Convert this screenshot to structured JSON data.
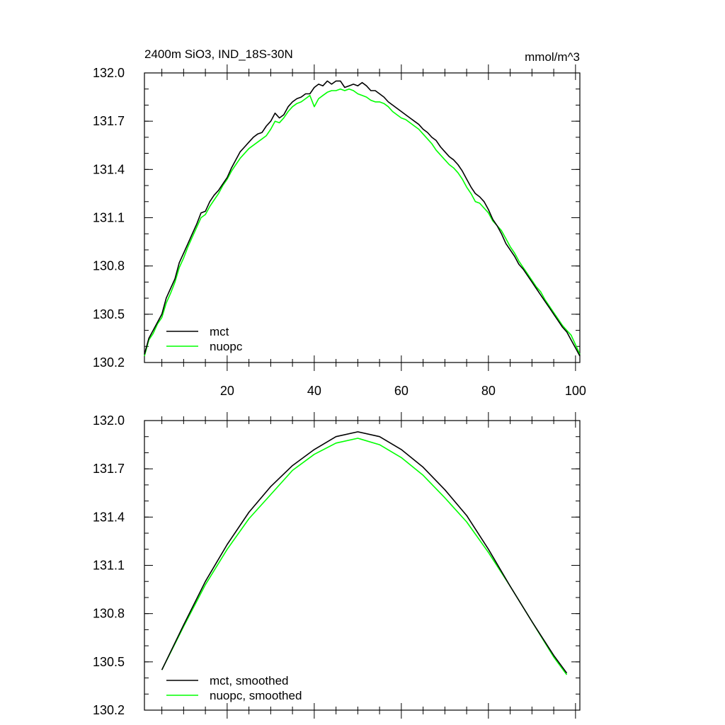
{
  "chart_data": [
    {
      "type": "line",
      "title": "2400m SiO3, IND_18S-30N",
      "units": "mmol/m^3",
      "xlim": [
        1,
        101
      ],
      "ylim": [
        130.2,
        132.0
      ],
      "x_ticks": [
        20,
        40,
        60,
        80,
        100
      ],
      "y_ticks": [
        130.2,
        130.5,
        130.8,
        131.1,
        131.4,
        131.7,
        132.0
      ],
      "y_tick_labels": [
        "130.2",
        "130.5",
        "130.8",
        "131.1",
        "131.4",
        "131.7",
        "132.0"
      ],
      "x_tick_labels": [
        "20",
        "40",
        "60",
        "80",
        "100"
      ],
      "legend_position": "bottom-left",
      "series": [
        {
          "name": "mct",
          "color": "#000000",
          "points": [
            [
              1,
              130.25
            ],
            [
              2,
              130.35
            ],
            [
              3,
              130.4
            ],
            [
              4,
              130.45
            ],
            [
              5,
              130.5
            ],
            [
              6,
              130.6
            ],
            [
              7,
              130.66
            ],
            [
              8,
              130.72
            ],
            [
              9,
              130.82
            ],
            [
              10,
              130.88
            ],
            [
              11,
              130.94
            ],
            [
              12,
              131.0
            ],
            [
              13,
              131.06
            ],
            [
              14,
              131.13
            ],
            [
              15,
              131.14
            ],
            [
              16,
              131.2
            ],
            [
              17,
              131.24
            ],
            [
              18,
              131.27
            ],
            [
              19,
              131.31
            ],
            [
              20,
              131.35
            ],
            [
              21,
              131.41
            ],
            [
              22,
              131.46
            ],
            [
              23,
              131.51
            ],
            [
              24,
              131.54
            ],
            [
              25,
              131.57
            ],
            [
              26,
              131.6
            ],
            [
              27,
              131.62
            ],
            [
              28,
              131.63
            ],
            [
              29,
              131.67
            ],
            [
              30,
              131.7
            ],
            [
              31,
              131.75
            ],
            [
              32,
              131.72
            ],
            [
              33,
              131.74
            ],
            [
              34,
              131.79
            ],
            [
              35,
              131.82
            ],
            [
              36,
              131.84
            ],
            [
              37,
              131.85
            ],
            [
              38,
              131.87
            ],
            [
              39,
              131.87
            ],
            [
              40,
              131.91
            ],
            [
              41,
              131.93
            ],
            [
              42,
              131.92
            ],
            [
              43,
              131.95
            ],
            [
              44,
              131.93
            ],
            [
              45,
              131.95
            ],
            [
              46,
              131.95
            ],
            [
              47,
              131.91
            ],
            [
              48,
              131.92
            ],
            [
              49,
              131.93
            ],
            [
              50,
              131.92
            ],
            [
              51,
              131.94
            ],
            [
              52,
              131.92
            ],
            [
              53,
              131.89
            ],
            [
              54,
              131.89
            ],
            [
              55,
              131.87
            ],
            [
              56,
              131.85
            ],
            [
              57,
              131.82
            ],
            [
              58,
              131.8
            ],
            [
              59,
              131.78
            ],
            [
              60,
              131.76
            ],
            [
              61,
              131.74
            ],
            [
              62,
              131.72
            ],
            [
              63,
              131.7
            ],
            [
              64,
              131.68
            ],
            [
              65,
              131.65
            ],
            [
              66,
              131.63
            ],
            [
              67,
              131.6
            ],
            [
              68,
              131.58
            ],
            [
              69,
              131.54
            ],
            [
              70,
              131.51
            ],
            [
              71,
              131.48
            ],
            [
              72,
              131.46
            ],
            [
              73,
              131.43
            ],
            [
              74,
              131.39
            ],
            [
              75,
              131.34
            ],
            [
              76,
              131.29
            ],
            [
              77,
              131.25
            ],
            [
              78,
              131.23
            ],
            [
              79,
              131.2
            ],
            [
              80,
              131.15
            ],
            [
              81,
              131.09
            ],
            [
              82,
              131.05
            ],
            [
              83,
              131.0
            ],
            [
              84,
              130.94
            ],
            [
              85,
              130.9
            ],
            [
              86,
              130.86
            ],
            [
              87,
              130.81
            ],
            [
              88,
              130.78
            ],
            [
              89,
              130.74
            ],
            [
              90,
              130.7
            ],
            [
              91,
              130.66
            ],
            [
              92,
              130.62
            ],
            [
              93,
              130.58
            ],
            [
              94,
              130.54
            ],
            [
              95,
              130.5
            ],
            [
              96,
              130.46
            ],
            [
              97,
              130.42
            ],
            [
              98,
              130.39
            ],
            [
              99,
              130.34
            ],
            [
              100,
              130.29
            ],
            [
              101,
              130.24
            ]
          ]
        },
        {
          "name": "nuopc",
          "color": "#00ff00",
          "points": [
            [
              1,
              130.24
            ],
            [
              2,
              130.34
            ],
            [
              3,
              130.38
            ],
            [
              4,
              130.44
            ],
            [
              5,
              130.48
            ],
            [
              6,
              130.57
            ],
            [
              7,
              130.63
            ],
            [
              8,
              130.7
            ],
            [
              9,
              130.79
            ],
            [
              10,
              130.85
            ],
            [
              11,
              130.92
            ],
            [
              12,
              130.98
            ],
            [
              13,
              131.04
            ],
            [
              14,
              131.1
            ],
            [
              15,
              131.12
            ],
            [
              16,
              131.17
            ],
            [
              17,
              131.21
            ],
            [
              18,
              131.25
            ],
            [
              19,
              131.3
            ],
            [
              20,
              131.34
            ],
            [
              21,
              131.39
            ],
            [
              22,
              131.43
            ],
            [
              23,
              131.47
            ],
            [
              24,
              131.5
            ],
            [
              25,
              131.53
            ],
            [
              26,
              131.55
            ],
            [
              27,
              131.57
            ],
            [
              28,
              131.59
            ],
            [
              29,
              131.61
            ],
            [
              30,
              131.65
            ],
            [
              31,
              131.7
            ],
            [
              32,
              131.69
            ],
            [
              33,
              131.72
            ],
            [
              34,
              131.76
            ],
            [
              35,
              131.79
            ],
            [
              36,
              131.81
            ],
            [
              37,
              131.82
            ],
            [
              38,
              131.84
            ],
            [
              39,
              131.86
            ],
            [
              40,
              131.79
            ],
            [
              41,
              131.84
            ],
            [
              42,
              131.86
            ],
            [
              43,
              131.88
            ],
            [
              44,
              131.89
            ],
            [
              45,
              131.89
            ],
            [
              46,
              131.9
            ],
            [
              47,
              131.89
            ],
            [
              48,
              131.9
            ],
            [
              49,
              131.89
            ],
            [
              50,
              131.87
            ],
            [
              51,
              131.86
            ],
            [
              52,
              131.85
            ],
            [
              53,
              131.83
            ],
            [
              54,
              131.82
            ],
            [
              55,
              131.82
            ],
            [
              56,
              131.81
            ],
            [
              57,
              131.79
            ],
            [
              58,
              131.76
            ],
            [
              59,
              131.74
            ],
            [
              60,
              131.72
            ],
            [
              61,
              131.71
            ],
            [
              62,
              131.69
            ],
            [
              63,
              131.67
            ],
            [
              64,
              131.65
            ],
            [
              65,
              131.62
            ],
            [
              66,
              131.59
            ],
            [
              67,
              131.56
            ],
            [
              68,
              131.52
            ],
            [
              69,
              131.49
            ],
            [
              70,
              131.46
            ],
            [
              71,
              131.43
            ],
            [
              72,
              131.41
            ],
            [
              73,
              131.38
            ],
            [
              74,
              131.34
            ],
            [
              75,
              131.29
            ],
            [
              76,
              131.25
            ],
            [
              77,
              131.2
            ],
            [
              78,
              131.19
            ],
            [
              79,
              131.16
            ],
            [
              80,
              131.13
            ],
            [
              81,
              131.08
            ],
            [
              82,
              131.05
            ],
            [
              83,
              131.02
            ],
            [
              84,
              130.97
            ],
            [
              85,
              130.92
            ],
            [
              86,
              130.88
            ],
            [
              87,
              130.83
            ],
            [
              88,
              130.79
            ],
            [
              89,
              130.75
            ],
            [
              90,
              130.71
            ],
            [
              91,
              130.67
            ],
            [
              92,
              130.64
            ],
            [
              93,
              130.59
            ],
            [
              94,
              130.55
            ],
            [
              95,
              130.51
            ],
            [
              96,
              130.47
            ],
            [
              97,
              130.43
            ],
            [
              98,
              130.4
            ],
            [
              99,
              130.37
            ],
            [
              100,
              130.31
            ],
            [
              101,
              130.25
            ]
          ]
        }
      ]
    },
    {
      "type": "line",
      "xlim": [
        1,
        101
      ],
      "ylim": [
        130.2,
        132.0
      ],
      "x_ticks": [
        20,
        40,
        60,
        80,
        100
      ],
      "y_ticks": [
        130.2,
        130.5,
        130.8,
        131.1,
        131.4,
        131.7,
        132.0
      ],
      "y_tick_labels": [
        "130.2",
        "130.5",
        "130.8",
        "131.1",
        "131.4",
        "131.7",
        "132.0"
      ],
      "legend_position": "bottom-left",
      "series": [
        {
          "name": "mct, smoothed",
          "color": "#000000",
          "points": [
            [
              5,
              130.45
            ],
            [
              10,
              130.73
            ],
            [
              15,
              131.0
            ],
            [
              20,
              131.23
            ],
            [
              25,
              131.43
            ],
            [
              30,
              131.59
            ],
            [
              35,
              131.72
            ],
            [
              40,
              131.82
            ],
            [
              45,
              131.9
            ],
            [
              50,
              131.93
            ],
            [
              55,
              131.9
            ],
            [
              60,
              131.82
            ],
            [
              65,
              131.71
            ],
            [
              70,
              131.57
            ],
            [
              75,
              131.41
            ],
            [
              80,
              131.2
            ],
            [
              85,
              130.97
            ],
            [
              90,
              130.75
            ],
            [
              95,
              130.54
            ],
            [
              98,
              130.43
            ]
          ]
        },
        {
          "name": "nuopc, smoothed",
          "color": "#00ff00",
          "points": [
            [
              5,
              130.45
            ],
            [
              10,
              130.72
            ],
            [
              15,
              130.98
            ],
            [
              20,
              131.2
            ],
            [
              25,
              131.39
            ],
            [
              30,
              131.54
            ],
            [
              35,
              131.69
            ],
            [
              40,
              131.79
            ],
            [
              45,
              131.86
            ],
            [
              50,
              131.89
            ],
            [
              55,
              131.85
            ],
            [
              60,
              131.77
            ],
            [
              65,
              131.66
            ],
            [
              70,
              131.52
            ],
            [
              75,
              131.37
            ],
            [
              80,
              131.18
            ],
            [
              85,
              130.97
            ],
            [
              90,
              130.75
            ],
            [
              95,
              130.53
            ],
            [
              98,
              130.42
            ]
          ]
        }
      ]
    }
  ]
}
